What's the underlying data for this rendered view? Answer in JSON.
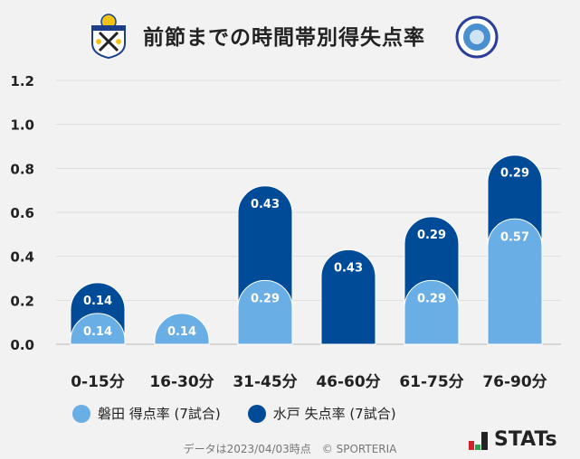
{
  "chart_data": {
    "type": "bar",
    "stacked": true,
    "title": "前節までの時間帯別得失点率",
    "categories": [
      "0-15分",
      "16-30分",
      "31-45分",
      "46-60分",
      "61-75分",
      "76-90分"
    ],
    "series": [
      {
        "name": "磐田 得点率 (7試合)",
        "color": "#6aaee6",
        "values": [
          0.14,
          0.14,
          0.29,
          0,
          0.29,
          0.57
        ],
        "labels": [
          "0.14",
          "0.14",
          "0.29",
          "",
          "0.29",
          "0.57"
        ]
      },
      {
        "name": "水戸 失点率 (7試合)",
        "color": "#004b98",
        "values": [
          0.14,
          0,
          0.43,
          0.43,
          0.29,
          0.29
        ],
        "labels": [
          "0.14",
          "",
          "0.43",
          "0.43",
          "0.29",
          "0.29"
        ]
      }
    ],
    "ylim": [
      0,
      1.2
    ],
    "yticks": [
      "0.0",
      "0.2",
      "0.4",
      "0.6",
      "0.8",
      "1.0",
      "1.2"
    ],
    "grid": true,
    "legend": "bottom"
  },
  "footer": "データは2023/04/03時点　© SPORTERIA",
  "brand": "STATs",
  "logos": {
    "home": "Jubilo Iwata",
    "away": "Mito Hollyhock"
  }
}
